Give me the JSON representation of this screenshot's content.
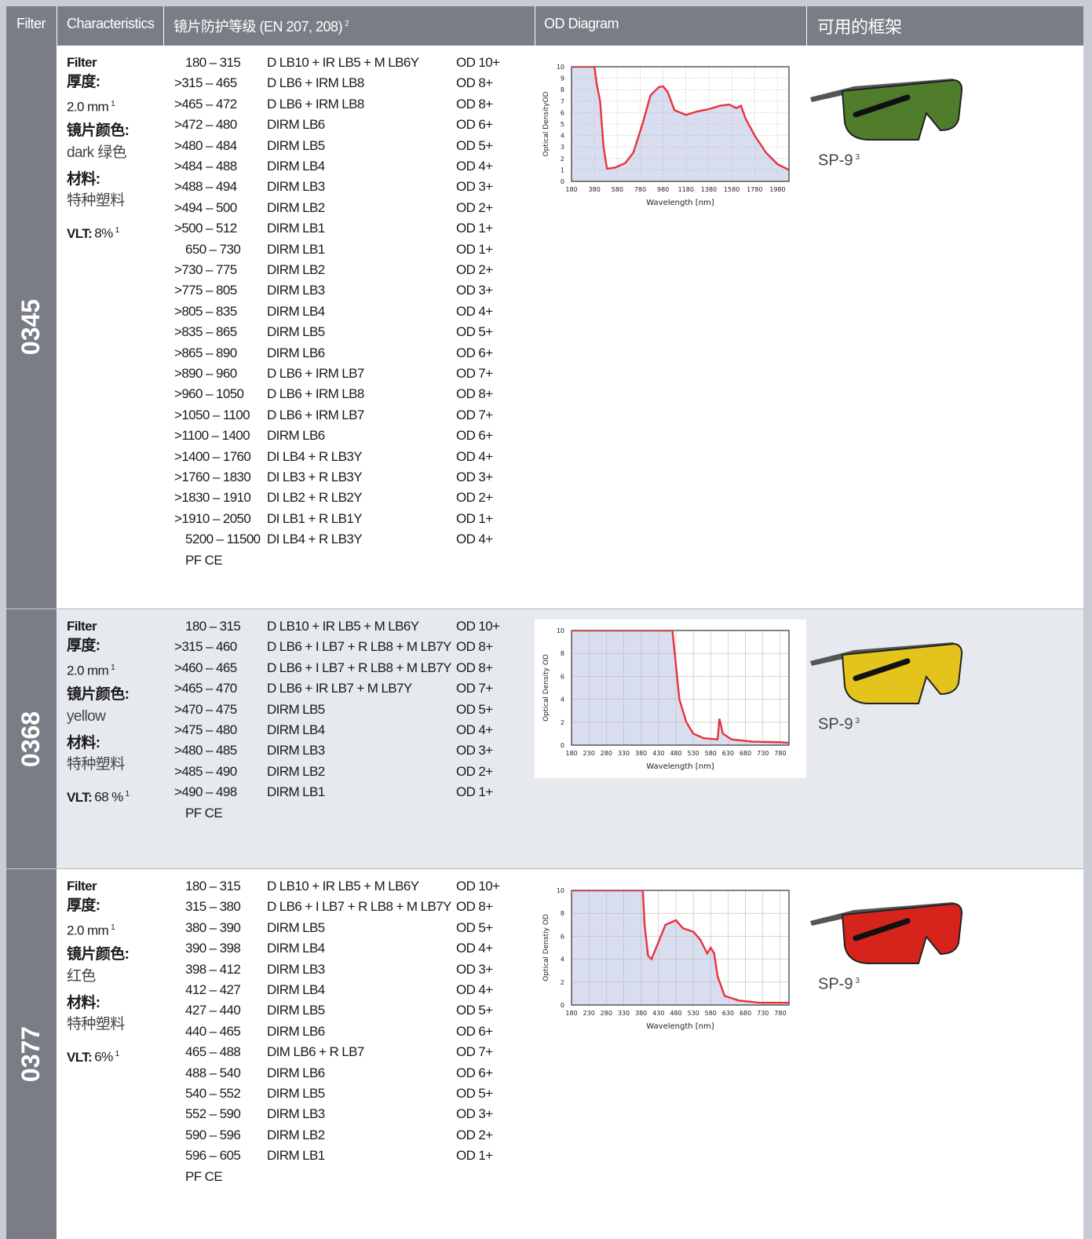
{
  "header": {
    "filter": "Filter",
    "characteristics": "Characteristics",
    "protection": "镜片防护等级 (EN 207, 208)",
    "protection_note": "2",
    "diagram": "OD Diagram",
    "frames": "可用的框架"
  },
  "rows": [
    {
      "filter": "0345",
      "characteristics": {
        "filter_label": "Filter",
        "thickness_label": "厚度:",
        "thickness": "2.0 mm",
        "thickness_note": "1",
        "color_label": "镜片颜色:",
        "color": "dark 绿色",
        "material_label": "材料:",
        "material": "特种塑料",
        "vlt_label": "VLT:",
        "vlt": "8%",
        "vlt_note": "1"
      },
      "protection": [
        [
          "180 – 315",
          "D LB10 + IR LB5 + M LB6Y",
          "OD 10+"
        ],
        [
          ">315 – 465",
          "D LB6 + IRM LB8",
          "OD 8+"
        ],
        [
          ">465 – 472",
          "D LB6 + IRM LB8",
          "OD 8+"
        ],
        [
          ">472 – 480",
          "DIRM LB6",
          "OD 6+"
        ],
        [
          ">480 – 484",
          "DIRM LB5",
          "OD 5+"
        ],
        [
          ">484 – 488",
          "DIRM LB4",
          "OD 4+"
        ],
        [
          ">488 – 494",
          "DIRM LB3",
          "OD 3+"
        ],
        [
          ">494 – 500",
          "DIRM LB2",
          "OD 2+"
        ],
        [
          ">500 – 512",
          "DIRM LB1",
          "OD 1+"
        ],
        [
          "650 – 730",
          "DIRM LB1",
          "OD 1+"
        ],
        [
          ">730 – 775",
          "DIRM LB2",
          "OD 2+"
        ],
        [
          ">775 – 805",
          "DIRM LB3",
          "OD 3+"
        ],
        [
          ">805 – 835",
          "DIRM LB4",
          "OD 4+"
        ],
        [
          ">835 – 865",
          "DIRM LB5",
          "OD 5+"
        ],
        [
          ">865 – 890",
          "DIRM LB6",
          "OD 6+"
        ],
        [
          ">890 – 960",
          "D LB6 + IRM LB7",
          "OD 7+"
        ],
        [
          ">960 – 1050",
          "D LB6 + IRM LB8",
          "OD 8+"
        ],
        [
          ">1050 – 1100",
          "D LB6 + IRM LB7",
          "OD 7+"
        ],
        [
          ">1100 – 1400",
          "DIRM LB6",
          "OD 6+"
        ],
        [
          ">1400 – 1760",
          "DI LB4 + R LB3Y",
          "OD 4+"
        ],
        [
          ">1760 – 1830",
          "DI LB3 + R LB3Y",
          "OD 3+"
        ],
        [
          ">1830 – 1910",
          "DI LB2 + R LB2Y",
          "OD 2+"
        ],
        [
          ">1910 – 2050",
          "DI LB1 + R LB1Y",
          "OD 1+"
        ],
        [
          "5200 – 11500",
          "DI LB4 + R LB3Y",
          "OD 4+"
        ]
      ],
      "marking": "PF CE",
      "diagram": {
        "type": "line",
        "xlabel": "Wavelength [nm]",
        "ylabel": "Optical DensityOD",
        "xlim": [
          180,
          2080
        ],
        "ylim": [
          0,
          10
        ],
        "xticks": [
          180,
          380,
          580,
          780,
          980,
          1180,
          1380,
          1580,
          1780,
          1980
        ],
        "yticks": [
          0,
          1,
          2,
          3,
          4,
          5,
          6,
          7,
          8,
          9,
          10
        ],
        "grid": "dashed",
        "color": "#e8323c",
        "x": [
          180,
          380,
          400,
          430,
          460,
          490,
          560,
          650,
          720,
          800,
          870,
          940,
          980,
          1020,
          1080,
          1180,
          1280,
          1380,
          1480,
          1560,
          1620,
          1660,
          1700,
          1780,
          1880,
          1980,
          2080
        ],
        "values": [
          10,
          10,
          8.5,
          7,
          3,
          1.1,
          1.2,
          1.6,
          2.5,
          5,
          7.5,
          8.2,
          8.3,
          7.8,
          6.2,
          5.8,
          6.1,
          6.3,
          6.6,
          6.7,
          6.4,
          6.6,
          5.5,
          4,
          2.5,
          1.5,
          1
        ]
      },
      "frame": {
        "name": "SP-9",
        "note": "3"
      }
    },
    {
      "filter": "0368",
      "characteristics": {
        "filter_label": "Filter",
        "thickness_label": "厚度:",
        "thickness": "2.0 mm",
        "thickness_note": "1",
        "color_label": "镜片颜色:",
        "color": "yellow",
        "material_label": "材料:",
        "material": "特种塑料",
        "vlt_label": "VLT:",
        "vlt": "68 %",
        "vlt_note": "1"
      },
      "protection": [
        [
          "180 – 315",
          "D LB10 + IR LB5 + M LB6Y",
          "OD 10+"
        ],
        [
          ">315 – 460",
          "D LB6 + I LB7 + R LB8 + M LB7Y",
          "OD 8+"
        ],
        [
          ">460 – 465",
          "D LB6 + I LB7 + R LB8 + M LB7Y",
          "OD 8+"
        ],
        [
          ">465 – 470",
          "D LB6 + IR LB7 + M LB7Y",
          "OD 7+"
        ],
        [
          ">470 – 475",
          "DIRM LB5",
          "OD 5+"
        ],
        [
          ">475 – 480",
          "DIRM LB4",
          "OD 4+"
        ],
        [
          ">480 – 485",
          "DIRM LB3",
          "OD 3+"
        ],
        [
          ">485 – 490",
          "DIRM LB2",
          "OD 2+"
        ],
        [
          ">490 – 498",
          "DIRM LB1",
          "OD 1+"
        ]
      ],
      "marking": "PF CE",
      "diagram": {
        "type": "line",
        "xlabel": "Wavelength [nm]",
        "ylabel": "Optical Density OD",
        "xlim": [
          180,
          805
        ],
        "ylim": [
          0,
          10
        ],
        "xticks": [
          180,
          230,
          280,
          330,
          380,
          430,
          480,
          530,
          580,
          630,
          680,
          730,
          780
        ],
        "yticks": [
          0,
          2,
          4,
          6,
          8,
          10
        ],
        "grid": "solid",
        "color": "#e8323c",
        "x": [
          180,
          470,
          480,
          490,
          510,
          530,
          560,
          600,
          605,
          615,
          640,
          700,
          780,
          805
        ],
        "values": [
          10,
          10,
          7,
          4,
          2,
          1,
          0.6,
          0.5,
          2.3,
          1,
          0.5,
          0.3,
          0.25,
          0.2
        ]
      },
      "frame": {
        "name": "SP-9",
        "note": "3"
      }
    },
    {
      "filter": "0377",
      "characteristics": {
        "filter_label": "Filter",
        "thickness_label": "厚度:",
        "thickness": "2.0 mm",
        "thickness_note": "1",
        "color_label": "镜片颜色:",
        "color": "红色",
        "material_label": "材料:",
        "material": "特种塑料",
        "vlt_label": "VLT:",
        "vlt": "6%",
        "vlt_note": "1"
      },
      "protection": [
        [
          "180 – 315",
          "D LB10 + IR LB5 + M LB6Y",
          "OD 10+"
        ],
        [
          "315 – 380",
          "D LB6 + I LB7 + R LB8 + M LB7Y",
          "OD 8+"
        ],
        [
          "380 – 390",
          "DIRM LB5",
          "OD 5+"
        ],
        [
          "390 – 398",
          "DIRM LB4",
          "OD 4+"
        ],
        [
          "398 – 412",
          "DIRM LB3",
          "OD 3+"
        ],
        [
          "412 – 427",
          "DIRM LB4",
          "OD 4+"
        ],
        [
          "427 – 440",
          "DIRM LB5",
          "OD 5+"
        ],
        [
          "440 – 465",
          "DIRM LB6",
          "OD 6+"
        ],
        [
          "465 – 488",
          "DIM LB6 + R LB7",
          "OD 7+"
        ],
        [
          "488 – 540",
          "DIRM LB6",
          "OD 6+"
        ],
        [
          "540 – 552",
          "DIRM LB5",
          "OD 5+"
        ],
        [
          "552 – 590",
          "DIRM LB3",
          "OD 3+"
        ],
        [
          "590 – 596",
          "DIRM LB2",
          "OD 2+"
        ],
        [
          "596 – 605",
          "DIRM LB1",
          "OD 1+"
        ]
      ],
      "marking": "PF CE",
      "diagram": {
        "type": "line",
        "xlabel": "Wavelength [nm]",
        "ylabel": "Optical Denstiy OD",
        "xlim": [
          180,
          805
        ],
        "ylim": [
          0,
          10
        ],
        "xticks": [
          180,
          230,
          280,
          330,
          380,
          430,
          480,
          530,
          580,
          630,
          680,
          730,
          780
        ],
        "yticks": [
          0,
          2,
          4,
          6,
          8,
          10
        ],
        "grid": "solid",
        "color": "#e8323c",
        "x": [
          180,
          385,
          390,
          400,
          410,
          430,
          450,
          480,
          500,
          530,
          550,
          570,
          580,
          590,
          600,
          620,
          660,
          720,
          805
        ],
        "values": [
          10,
          10,
          7,
          4.3,
          4,
          5.5,
          7,
          7.4,
          6.7,
          6.4,
          5.7,
          4.5,
          5,
          4.5,
          2.5,
          0.8,
          0.4,
          0.2,
          0.2
        ]
      },
      "frame": {
        "name": "SP-9",
        "note": "3"
      }
    }
  ]
}
